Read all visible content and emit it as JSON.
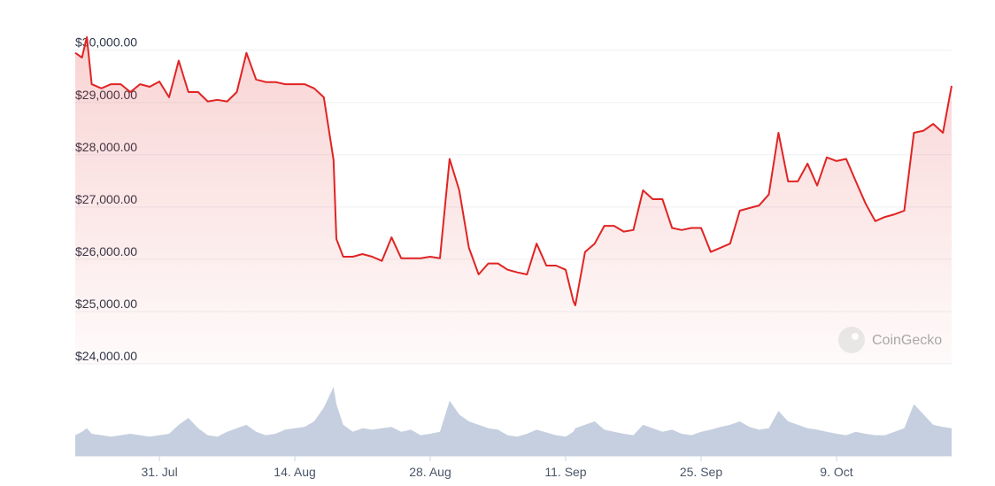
{
  "chart_data": {
    "type": "line",
    "watermark": "CoinGecko",
    "x": [
      -8.7,
      -8,
      -7.5,
      -7,
      -6,
      -5,
      -4,
      -3,
      -2,
      -1,
      0,
      1,
      2,
      3,
      4,
      5,
      6,
      7,
      8,
      9,
      10,
      11,
      12,
      13,
      14,
      15,
      16,
      17,
      17.5,
      18,
      18.3,
      19,
      20,
      21,
      22,
      23,
      24,
      25,
      26,
      27,
      28,
      29,
      30,
      31,
      32,
      33,
      34,
      35,
      36,
      37,
      38,
      39,
      40,
      41,
      42,
      42.8,
      43,
      44,
      45,
      46,
      47,
      48,
      49,
      50,
      51,
      52,
      53,
      54,
      55,
      56,
      57,
      58,
      59,
      60,
      61,
      62,
      63,
      64,
      65,
      66,
      67,
      68,
      69,
      70,
      71,
      72,
      73,
      74,
      75,
      76,
      77,
      78,
      79,
      80,
      81,
      81.9
    ],
    "series": [
      {
        "color": "#e02424",
        "values": [
          29950,
          29860,
          30250,
          29350,
          29270,
          29350,
          29350,
          29200,
          29350,
          29300,
          29400,
          29100,
          29800,
          29200,
          29200,
          29020,
          29050,
          29020,
          29200,
          29950,
          29440,
          29390,
          29390,
          29350,
          29350,
          29350,
          29270,
          29100,
          28500,
          27900,
          26390,
          26050,
          26050,
          26100,
          26050,
          25970,
          26420,
          26020,
          26020,
          26020,
          26050,
          26020,
          27920,
          27320,
          26220,
          25710,
          25920,
          25920,
          25800,
          25750,
          25710,
          26300,
          25880,
          25880,
          25800,
          25200,
          25120,
          26140,
          26300,
          26640,
          26640,
          26530,
          26560,
          27320,
          27150,
          27150,
          26600,
          26560,
          26600,
          26600,
          26140,
          26220,
          26300,
          26930,
          26980,
          27030,
          27240,
          28420,
          27490,
          27490,
          27830,
          27410,
          27950,
          27880,
          27920,
          27490,
          27070,
          26730,
          26810,
          26860,
          26930,
          28420,
          28460,
          28590,
          28420,
          29320
        ]
      },
      {
        "color": "#c5cfdf",
        "axis": "y2",
        "values": [
          30,
          35,
          40,
          32,
          30,
          28,
          30,
          32,
          30,
          28,
          30,
          32,
          45,
          55,
          40,
          30,
          28,
          35,
          40,
          45,
          35,
          30,
          32,
          38,
          40,
          42,
          50,
          70,
          85,
          100,
          75,
          45,
          35,
          40,
          38,
          40,
          42,
          35,
          38,
          30,
          32,
          35,
          80,
          60,
          50,
          45,
          40,
          38,
          30,
          28,
          32,
          38,
          34,
          30,
          28,
          35,
          40,
          45,
          50,
          38,
          35,
          32,
          30,
          45,
          40,
          35,
          38,
          32,
          30,
          35,
          38,
          42,
          45,
          50,
          42,
          38,
          40,
          65,
          50,
          45,
          40,
          38,
          35,
          32,
          30,
          35,
          32,
          30,
          30,
          35,
          40,
          75,
          60,
          45,
          42,
          40
        ]
      }
    ],
    "xlim": [
      -8.7,
      81.9
    ],
    "xticks": [
      {
        "value": 0,
        "label": "31. Jul"
      },
      {
        "value": 14,
        "label": "14. Aug"
      },
      {
        "value": 28,
        "label": "28. Aug"
      },
      {
        "value": 42,
        "label": "11. Sep"
      },
      {
        "value": 56,
        "label": "25. Sep"
      },
      {
        "value": 70,
        "label": "9. Oct"
      }
    ],
    "ylim": [
      24000,
      30300
    ],
    "yticks": [
      {
        "value": 24000,
        "label": "$24,000.00"
      },
      {
        "value": 25000,
        "label": "$25,000.00"
      },
      {
        "value": 26000,
        "label": "$26,000.00"
      },
      {
        "value": 27000,
        "label": "$27,000.00"
      },
      {
        "value": 28000,
        "label": "$28,000.00"
      },
      {
        "value": 29000,
        "label": "$29,000.00"
      },
      {
        "value": 30000,
        "label": "$30,000.00"
      }
    ],
    "y2lim": [
      0,
      100
    ],
    "grid": true
  }
}
